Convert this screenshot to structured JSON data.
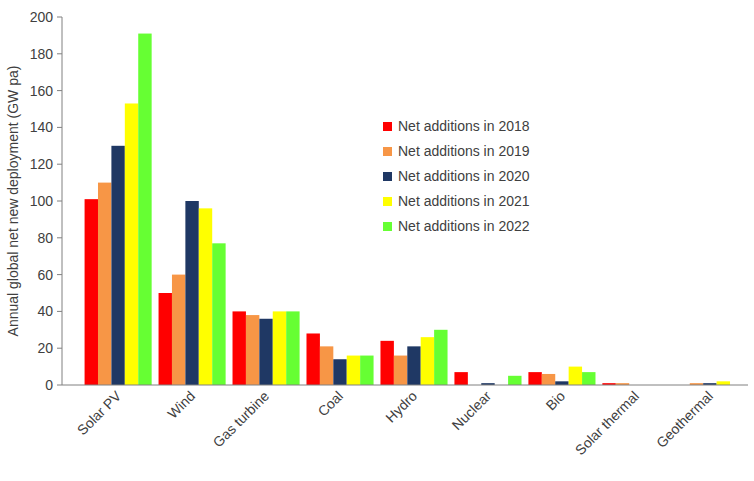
{
  "chart_data": {
    "type": "bar",
    "y_label": "Annual global net new deployment (GW pa)",
    "categories": [
      "Solar PV",
      "Wind",
      "Gas turbine",
      "Coal",
      "Hydro",
      "Nuclear",
      "Bio",
      "Solar thermal",
      "Geothermal"
    ],
    "series": [
      {
        "name": "Net additions in 2018",
        "color": "#ff0000",
        "values": [
          101,
          50,
          40,
          28,
          24,
          7,
          7,
          1,
          0
        ]
      },
      {
        "name": "Net additions in 2019",
        "color": "#f79646",
        "values": [
          110,
          60,
          38,
          21,
          16,
          0,
          6,
          1,
          1
        ]
      },
      {
        "name": "Net additions in 2020",
        "color": "#1f3864",
        "values": [
          130,
          100,
          36,
          14,
          21,
          1,
          2,
          0,
          1
        ]
      },
      {
        "name": "Net additions in 2021",
        "color": "#ffff00",
        "values": [
          153,
          96,
          40,
          16,
          26,
          0,
          10,
          0,
          2
        ]
      },
      {
        "name": "Net additions in 2022",
        "color": "#66ff33",
        "values": [
          191,
          77,
          40,
          16,
          30,
          5,
          7,
          0,
          0
        ]
      }
    ],
    "ylim": [
      0,
      200
    ],
    "yticks": [
      0,
      20,
      40,
      60,
      80,
      100,
      120,
      140,
      160,
      180,
      200
    ],
    "grid": false,
    "legend": "top"
  }
}
